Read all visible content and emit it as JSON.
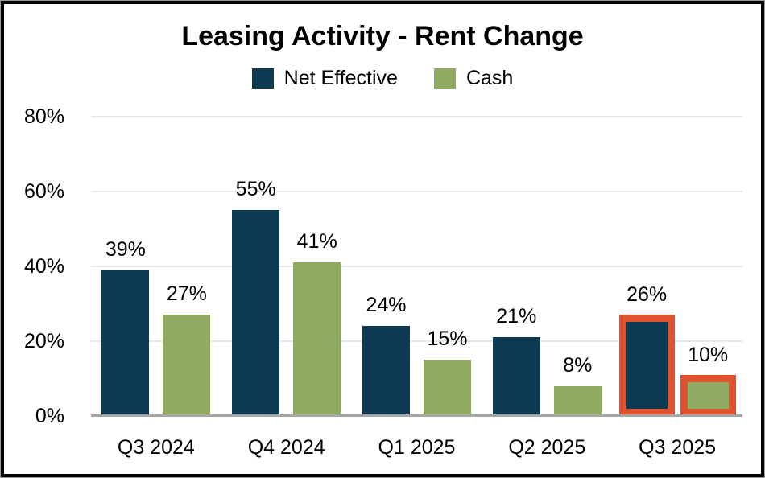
{
  "title": "Leasing Activity - Rent Change",
  "colors": {
    "net_effective": "#0e3a53",
    "cash": "#8fab61",
    "highlight_outline": "#e0512d",
    "gridline": "#e9e9e9",
    "axis_line": "#a6a6a6",
    "frame_border": "#000000"
  },
  "legend": {
    "items": [
      {
        "label": "Net Effective",
        "color": "#0e3a53"
      },
      {
        "label": "Cash",
        "color": "#8fab61"
      }
    ]
  },
  "chart_data": {
    "type": "bar",
    "title": "Leasing Activity - Rent Change",
    "categories": [
      "Q3 2024",
      "Q4 2024",
      "Q1 2025",
      "Q2 2025",
      "Q3 2025"
    ],
    "series": [
      {
        "name": "Net Effective",
        "color": "#0e3a53",
        "values": [
          39,
          55,
          24,
          21,
          26
        ]
      },
      {
        "name": "Cash",
        "color": "#8fab61",
        "values": [
          27,
          41,
          15,
          8,
          10
        ]
      }
    ],
    "data_labels": {
      "Net Effective": [
        "39%",
        "55%",
        "24%",
        "21%",
        "26%"
      ],
      "Cash": [
        "27%",
        "41%",
        "15%",
        "8%",
        "10%"
      ]
    },
    "value_suffix": "%",
    "xlabel": "",
    "ylabel": "",
    "ylim": [
      0,
      80
    ],
    "yticks": [
      {
        "label": "0%",
        "value": 0
      },
      {
        "label": "20%",
        "value": 20
      },
      {
        "label": "40%",
        "value": 40
      },
      {
        "label": "60%",
        "value": 60
      },
      {
        "label": "80%",
        "value": 80
      }
    ],
    "grid": true,
    "legend_position": "top",
    "highlight": {
      "category": "Q3 2025",
      "outline_color": "#e0512d"
    }
  }
}
